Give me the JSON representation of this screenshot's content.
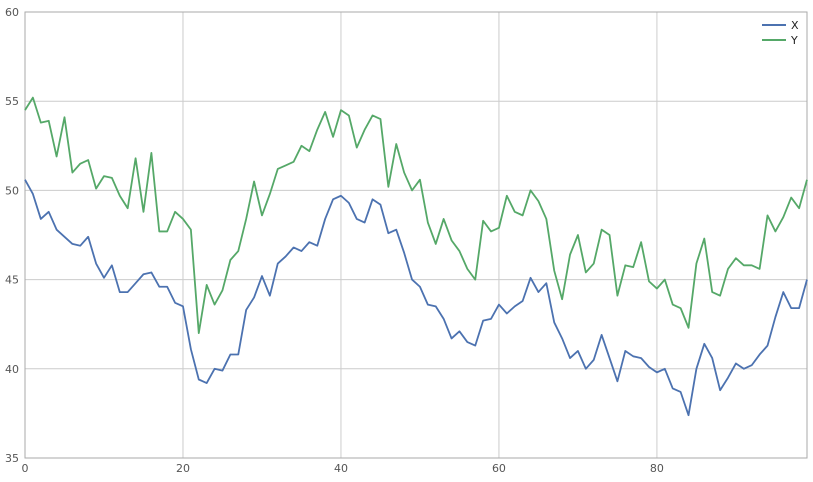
{
  "chart_data": {
    "type": "line",
    "xlim": [
      0,
      99
    ],
    "ylim": [
      35,
      60
    ],
    "xticks": [
      0,
      20,
      40,
      60,
      80
    ],
    "yticks": [
      35,
      40,
      45,
      50,
      55,
      60
    ],
    "grid": true,
    "legend_position": "top-right",
    "colors": {
      "background": "#ffffff",
      "grid": "#cccccc",
      "axes": "#aaaaaa"
    },
    "series": [
      {
        "name": "X",
        "color": "#4c72b0",
        "values": [
          50.6,
          49.8,
          48.4,
          48.8,
          47.8,
          47.4,
          47.0,
          46.9,
          47.4,
          45.9,
          45.1,
          45.8,
          44.3,
          44.3,
          44.8,
          45.3,
          45.4,
          44.6,
          44.6,
          43.7,
          43.5,
          41.1,
          39.4,
          39.2,
          40.0,
          39.9,
          40.8,
          40.8,
          43.3,
          44.0,
          45.2,
          44.1,
          45.9,
          46.3,
          46.8,
          46.6,
          47.1,
          46.9,
          48.4,
          49.5,
          49.7,
          49.3,
          48.4,
          48.2,
          49.5,
          49.2,
          47.6,
          47.8,
          46.5,
          45.0,
          44.6,
          43.6,
          43.5,
          42.8,
          41.7,
          42.1,
          41.5,
          41.3,
          42.7,
          42.8,
          43.6,
          43.1,
          43.5,
          43.8,
          45.1,
          44.3,
          44.8,
          42.6,
          41.7,
          40.6,
          41.0,
          40.0,
          40.5,
          41.9,
          40.6,
          39.3,
          41.0,
          40.7,
          40.6,
          40.1,
          39.8,
          40.0,
          38.9,
          38.7,
          37.4,
          40.0,
          41.4,
          40.6,
          38.8,
          39.5,
          40.3,
          40.0,
          40.2,
          40.8,
          41.3,
          42.9,
          44.3,
          43.4,
          43.4,
          45.0
        ]
      },
      {
        "name": "Y",
        "color": "#55a868",
        "values": [
          54.5,
          55.2,
          53.8,
          53.9,
          51.9,
          54.1,
          51.0,
          51.5,
          51.7,
          50.1,
          50.8,
          50.7,
          49.7,
          49.0,
          51.8,
          48.8,
          52.1,
          47.7,
          47.7,
          48.8,
          48.4,
          47.8,
          42.0,
          44.7,
          43.6,
          44.4,
          46.1,
          46.6,
          48.4,
          50.5,
          48.6,
          49.8,
          51.2,
          51.4,
          51.6,
          52.5,
          52.2,
          53.4,
          54.4,
          53.0,
          54.5,
          54.2,
          52.4,
          53.4,
          54.2,
          54.0,
          50.2,
          52.6,
          51.0,
          50.0,
          50.6,
          48.2,
          47.0,
          48.4,
          47.2,
          46.6,
          45.6,
          45.0,
          48.3,
          47.7,
          47.9,
          49.7,
          48.8,
          48.6,
          50.0,
          49.4,
          48.4,
          45.5,
          43.9,
          46.4,
          47.5,
          45.4,
          45.9,
          47.8,
          47.5,
          44.1,
          45.8,
          45.7,
          47.1,
          44.9,
          44.5,
          45.0,
          43.6,
          43.4,
          42.3,
          45.9,
          47.3,
          44.3,
          44.1,
          45.6,
          46.2,
          45.8,
          45.8,
          45.6,
          48.6,
          47.7,
          48.5,
          49.6,
          49.0,
          50.6
        ]
      }
    ]
  }
}
